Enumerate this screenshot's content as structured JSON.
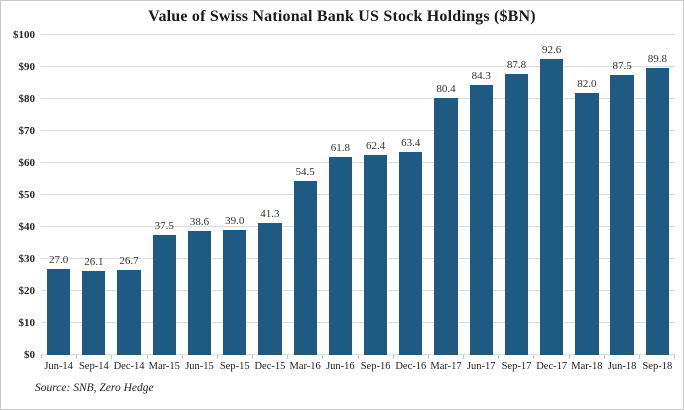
{
  "title": "Value of Swiss National Bank US Stock Holdings ($BN)",
  "source_note": "Source: SNB, Zero Hedge",
  "colors": {
    "bar": "#1F5A82",
    "grid": "#DCDCDC",
    "axis_text": "#262626",
    "value_text": "#333333"
  },
  "chart_data": {
    "type": "bar",
    "title": "Value of Swiss National Bank US Stock Holdings ($BN)",
    "categories": [
      "Jun-14",
      "Sep-14",
      "Dec-14",
      "Mar-15",
      "Jun-15",
      "Sep-15",
      "Dec-15",
      "Mar-16",
      "Jun-16",
      "Sep-16",
      "Dec-16",
      "Mar-17",
      "Jun-17",
      "Sep-17",
      "Dec-17",
      "Mar-18",
      "Jun-18",
      "Sep-18"
    ],
    "values": [
      27.0,
      26.1,
      26.7,
      37.5,
      38.6,
      39.0,
      41.3,
      54.5,
      61.8,
      62.4,
      63.4,
      80.4,
      84.3,
      87.8,
      92.6,
      82.0,
      87.5,
      89.8
    ],
    "xlabel": "",
    "ylabel": "",
    "ylim": [
      0,
      100
    ],
    "ytick_step": 10,
    "ytick_prefix": "$",
    "grid": true,
    "legend": false,
    "value_labels": true,
    "value_label_decimals": 1,
    "source": "Source: SNB, Zero Hedge"
  }
}
